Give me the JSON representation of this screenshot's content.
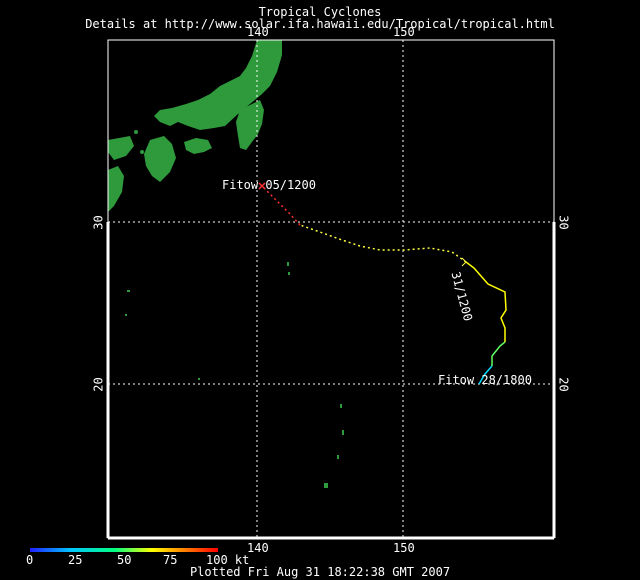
{
  "header": {
    "title": "Tropical Cyclones",
    "subtitle": "Details at http://www.solar.ifa.hawaii.edu/Tropical/tropical.html"
  },
  "map": {
    "lon_labels": [
      "140",
      "150"
    ],
    "lat_labels": [
      "30",
      "20"
    ],
    "land_color": "#2e9a3c",
    "grid_color": "#ffffff"
  },
  "storm": {
    "name": "Fitow",
    "start_label": "Fitow  28/1800",
    "mid_label": "31/1200",
    "end_label": "Fitow  05/1200"
  },
  "legend": {
    "ticks": [
      "0",
      "25",
      "50",
      "75",
      "100 kt"
    ],
    "colors": [
      "#2020ff",
      "#00c8ff",
      "#00ff80",
      "#ffff00",
      "#ff8000",
      "#ff0000"
    ]
  },
  "footer": {
    "plotted": "Plotted Fri Aug 31 18:22:38 GMT 2007"
  }
}
